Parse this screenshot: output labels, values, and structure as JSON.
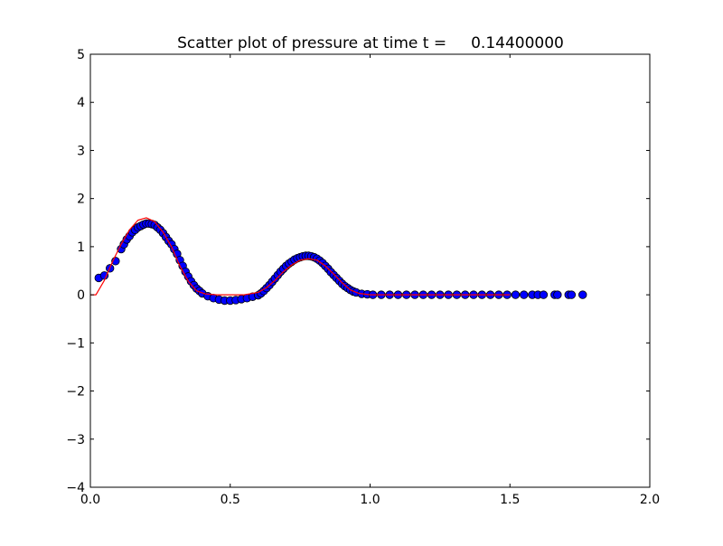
{
  "chart_data": {
    "type": "scatter",
    "title": "Scatter plot of pressure at time t =     0.14400000",
    "xlabel": "",
    "ylabel": "",
    "xlim": [
      0,
      2.0
    ],
    "ylim": [
      -4,
      5
    ],
    "grid": false,
    "xticks": [
      "0.0",
      "0.5",
      "1.0",
      "1.5",
      "2.0"
    ],
    "xtick_values": [
      0,
      0.5,
      1.0,
      1.5,
      2.0
    ],
    "yticks": [
      "−4",
      "−3",
      "−2",
      "−1",
      "0",
      "1",
      "2",
      "3",
      "4",
      "5"
    ],
    "ytick_values": [
      -4,
      -3,
      -2,
      -1,
      0,
      1,
      2,
      3,
      4,
      5
    ],
    "colors": {
      "scatter_fill": "#0000ff",
      "scatter_edge": "#000000",
      "line": "#ff0000"
    },
    "scatter": {
      "x": [
        0.03,
        0.05,
        0.07,
        0.09,
        0.11,
        0.12,
        0.13,
        0.14,
        0.15,
        0.16,
        0.17,
        0.18,
        0.19,
        0.2,
        0.21,
        0.22,
        0.23,
        0.24,
        0.25,
        0.26,
        0.27,
        0.28,
        0.29,
        0.3,
        0.31,
        0.32,
        0.33,
        0.34,
        0.35,
        0.36,
        0.37,
        0.38,
        0.39,
        0.4,
        0.42,
        0.44,
        0.46,
        0.48,
        0.5,
        0.52,
        0.54,
        0.56,
        0.58,
        0.6,
        0.61,
        0.62,
        0.63,
        0.64,
        0.65,
        0.66,
        0.67,
        0.68,
        0.69,
        0.7,
        0.71,
        0.72,
        0.73,
        0.74,
        0.75,
        0.76,
        0.77,
        0.78,
        0.79,
        0.8,
        0.81,
        0.82,
        0.83,
        0.84,
        0.85,
        0.86,
        0.87,
        0.88,
        0.89,
        0.9,
        0.91,
        0.92,
        0.93,
        0.94,
        0.95,
        0.97,
        0.99,
        1.01,
        1.04,
        1.07,
        1.1,
        1.13,
        1.16,
        1.19,
        1.22,
        1.25,
        1.28,
        1.31,
        1.34,
        1.37,
        1.4,
        1.43,
        1.46,
        1.49,
        1.52,
        1.55,
        1.58,
        1.6,
        1.62,
        1.66,
        1.67,
        1.71,
        1.72,
        1.76
      ],
      "y": [
        0.35,
        0.4,
        0.55,
        0.7,
        0.95,
        1.05,
        1.15,
        1.22,
        1.3,
        1.35,
        1.4,
        1.43,
        1.46,
        1.48,
        1.48,
        1.47,
        1.45,
        1.4,
        1.35,
        1.28,
        1.2,
        1.12,
        1.05,
        0.95,
        0.85,
        0.72,
        0.6,
        0.48,
        0.38,
        0.28,
        0.2,
        0.13,
        0.08,
        0.03,
        -0.03,
        -0.07,
        -0.1,
        -0.12,
        -0.12,
        -0.11,
        -0.09,
        -0.07,
        -0.04,
        -0.01,
        0.03,
        0.08,
        0.14,
        0.2,
        0.27,
        0.34,
        0.41,
        0.48,
        0.54,
        0.6,
        0.65,
        0.69,
        0.73,
        0.76,
        0.78,
        0.8,
        0.81,
        0.81,
        0.8,
        0.78,
        0.75,
        0.71,
        0.66,
        0.6,
        0.54,
        0.47,
        0.41,
        0.35,
        0.29,
        0.23,
        0.18,
        0.14,
        0.1,
        0.07,
        0.05,
        0.02,
        0.01,
        0,
        0,
        0,
        0,
        0,
        0,
        0,
        0,
        0,
        0,
        0,
        0,
        0,
        0,
        0,
        0,
        0,
        0,
        0,
        0,
        0,
        0,
        0,
        0,
        0,
        0,
        0
      ]
    },
    "line": {
      "x": [
        0,
        0.02,
        0.05,
        0.08,
        0.11,
        0.14,
        0.17,
        0.2,
        0.23,
        0.26,
        0.29,
        0.32,
        0.35,
        0.38,
        0.41,
        0.45,
        0.5,
        0.55,
        0.6,
        0.63,
        0.66,
        0.69,
        0.72,
        0.75,
        0.78,
        0.81,
        0.84,
        0.87,
        0.9,
        0.93,
        0.96,
        1.0,
        1.5
      ],
      "y": [
        0,
        0,
        0.3,
        0.7,
        1.05,
        1.35,
        1.55,
        1.6,
        1.52,
        1.3,
        1.0,
        0.6,
        0.28,
        0.08,
        0.02,
        0,
        0,
        0,
        0.05,
        0.15,
        0.3,
        0.48,
        0.62,
        0.72,
        0.75,
        0.72,
        0.6,
        0.43,
        0.25,
        0.1,
        0.03,
        0,
        0
      ]
    }
  }
}
